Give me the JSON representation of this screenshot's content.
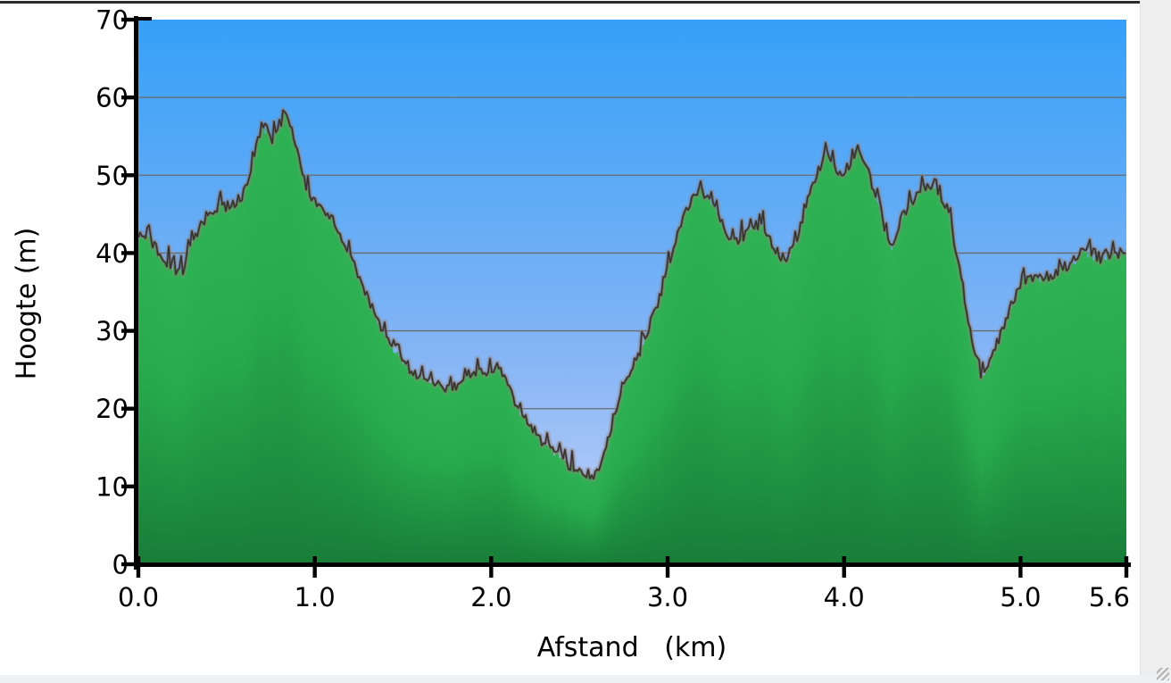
{
  "chart_data": {
    "type": "area",
    "title": "",
    "xlabel": "Afstand   (km)",
    "ylabel": "Hoogte (m)",
    "xlim": [
      0,
      5.6
    ],
    "ylim": [
      0,
      70
    ],
    "grid": "horizontal-only",
    "legend": "none",
    "x_ticks": [
      {
        "value": 0.0,
        "label": "0.0"
      },
      {
        "value": 1.0,
        "label": "1.0"
      },
      {
        "value": 2.0,
        "label": "2.0"
      },
      {
        "value": 3.0,
        "label": "3.0"
      },
      {
        "value": 4.0,
        "label": "4.0"
      },
      {
        "value": 5.0,
        "label": "5.0"
      },
      {
        "value": 5.6,
        "label": "5.6"
      }
    ],
    "y_ticks": [
      0,
      10,
      20,
      30,
      40,
      50,
      60,
      70
    ],
    "series_name": "elevation-profile",
    "profile_km_m": [
      [
        0.0,
        41.5
      ],
      [
        0.05,
        42.5
      ],
      [
        0.1,
        40.5
      ],
      [
        0.15,
        39
      ],
      [
        0.2,
        38
      ],
      [
        0.25,
        37.5
      ],
      [
        0.3,
        41
      ],
      [
        0.35,
        43.5
      ],
      [
        0.4,
        45
      ],
      [
        0.45,
        46
      ],
      [
        0.5,
        46
      ],
      [
        0.55,
        46.5
      ],
      [
        0.6,
        47.5
      ],
      [
        0.63,
        50
      ],
      [
        0.66,
        53
      ],
      [
        0.7,
        56
      ],
      [
        0.73,
        55.5
      ],
      [
        0.76,
        54.5
      ],
      [
        0.8,
        56.5
      ],
      [
        0.83,
        58
      ],
      [
        0.86,
        56.5
      ],
      [
        0.9,
        53.5
      ],
      [
        0.93,
        50.5
      ],
      [
        0.96,
        48
      ],
      [
        1.0,
        46.5
      ],
      [
        1.05,
        45.5
      ],
      [
        1.1,
        44.5
      ],
      [
        1.15,
        42
      ],
      [
        1.2,
        39.5
      ],
      [
        1.25,
        36.5
      ],
      [
        1.3,
        34
      ],
      [
        1.35,
        31.5
      ],
      [
        1.4,
        29
      ],
      [
        1.45,
        27.5
      ],
      [
        1.5,
        26
      ],
      [
        1.55,
        24.5
      ],
      [
        1.6,
        24
      ],
      [
        1.65,
        23.5
      ],
      [
        1.7,
        23
      ],
      [
        1.75,
        22.5
      ],
      [
        1.8,
        23
      ],
      [
        1.85,
        24
      ],
      [
        1.9,
        25
      ],
      [
        1.95,
        24.5
      ],
      [
        2.0,
        25
      ],
      [
        2.04,
        25.5
      ],
      [
        2.08,
        24
      ],
      [
        2.12,
        21.5
      ],
      [
        2.16,
        19.5
      ],
      [
        2.2,
        18.5
      ],
      [
        2.25,
        17
      ],
      [
        2.3,
        15.5
      ],
      [
        2.35,
        14.5
      ],
      [
        2.4,
        13.5
      ],
      [
        2.45,
        12.5
      ],
      [
        2.5,
        12
      ],
      [
        2.55,
        11.2
      ],
      [
        2.58,
        11
      ],
      [
        2.62,
        13
      ],
      [
        2.66,
        16
      ],
      [
        2.7,
        19.5
      ],
      [
        2.74,
        22
      ],
      [
        2.78,
        24
      ],
      [
        2.82,
        26
      ],
      [
        2.86,
        28
      ],
      [
        2.9,
        31
      ],
      [
        2.95,
        34
      ],
      [
        3.0,
        38
      ],
      [
        3.05,
        42
      ],
      [
        3.1,
        45.5
      ],
      [
        3.15,
        47.5
      ],
      [
        3.18,
        48.5
      ],
      [
        3.22,
        47
      ],
      [
        3.27,
        45.5
      ],
      [
        3.32,
        43
      ],
      [
        3.36,
        41.5
      ],
      [
        3.4,
        41.5
      ],
      [
        3.45,
        42.5
      ],
      [
        3.5,
        43.5
      ],
      [
        3.55,
        43
      ],
      [
        3.6,
        41
      ],
      [
        3.64,
        39.5
      ],
      [
        3.68,
        39
      ],
      [
        3.72,
        41
      ],
      [
        3.76,
        44
      ],
      [
        3.8,
        47
      ],
      [
        3.85,
        50.5
      ],
      [
        3.9,
        53
      ],
      [
        3.94,
        51.5
      ],
      [
        3.98,
        49.5
      ],
      [
        4.02,
        51
      ],
      [
        4.07,
        53.5
      ],
      [
        4.11,
        52
      ],
      [
        4.15,
        49.5
      ],
      [
        4.19,
        46.5
      ],
      [
        4.23,
        43
      ],
      [
        4.27,
        40
      ],
      [
        4.3,
        42
      ],
      [
        4.34,
        45
      ],
      [
        4.38,
        46.5
      ],
      [
        4.42,
        47.5
      ],
      [
        4.46,
        48.5
      ],
      [
        4.5,
        48.5
      ],
      [
        4.54,
        47.5
      ],
      [
        4.58,
        46
      ],
      [
        4.62,
        42
      ],
      [
        4.66,
        37
      ],
      [
        4.7,
        32
      ],
      [
        4.74,
        27.5
      ],
      [
        4.78,
        24
      ],
      [
        4.82,
        25.5
      ],
      [
        4.86,
        28
      ],
      [
        4.9,
        30.5
      ],
      [
        4.95,
        33.5
      ],
      [
        5.0,
        36
      ],
      [
        5.05,
        37
      ],
      [
        5.1,
        36.5
      ],
      [
        5.15,
        37
      ],
      [
        5.2,
        37.5
      ],
      [
        5.25,
        38
      ],
      [
        5.3,
        38.5
      ],
      [
        5.35,
        40
      ],
      [
        5.4,
        39.5
      ],
      [
        5.45,
        39
      ],
      [
        5.5,
        39.5
      ],
      [
        5.55,
        40
      ],
      [
        5.6,
        39.5
      ]
    ],
    "noise_amplitude_m": 1.5,
    "colors": {
      "sky_top": "#35A0F8",
      "sky_mid": "#86B5F5",
      "sky_bottom": "#C3D3FA",
      "terrain_top": "#2EB254",
      "terrain_mid": "#27A84C",
      "terrain_bottom": "#187D38",
      "outline_dark": "#342E29",
      "outline_mid": "#5E4F45",
      "outline_haze": "#9A857B",
      "gridline": "#6A6A6A",
      "axis": "#000000",
      "label": "#000000"
    }
  },
  "window": {
    "right_gutter_color": "#eeeeee",
    "bottom_gutter_color": "#eef1f4",
    "top_border_color": "#2b2b2b"
  }
}
